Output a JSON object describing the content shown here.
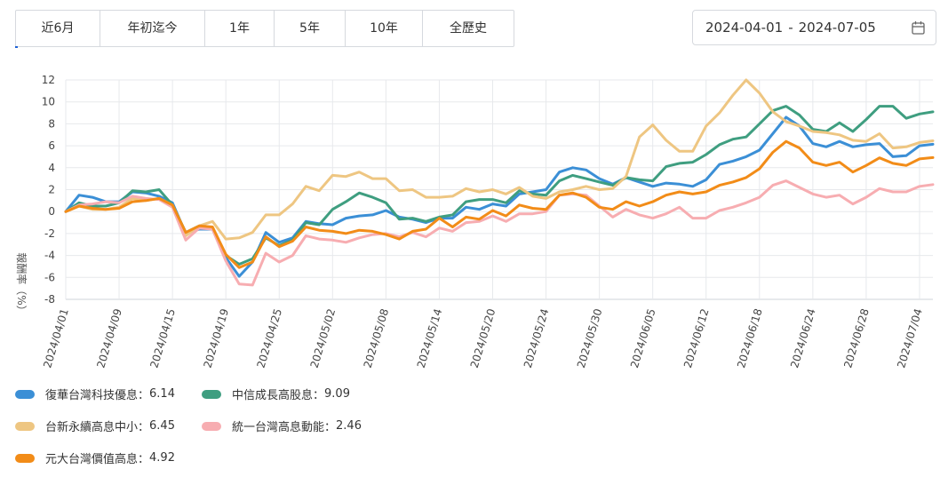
{
  "range_tabs": [
    "近6月",
    "年初迄今",
    "1年",
    "5年",
    "10年",
    "全歷史"
  ],
  "date_range": {
    "start": "2024-04-01",
    "separator": "-",
    "end": "2024-07-05",
    "icon": "calendar-icon"
  },
  "chart_data": {
    "type": "line",
    "ylabel": "報酬率（%）",
    "ylim": [
      -8,
      12
    ],
    "yticks": [
      -8,
      -6,
      -4,
      -2,
      0,
      2,
      4,
      6,
      8,
      10,
      12
    ],
    "grid": true,
    "legend_position": "bottom-left",
    "x": [
      "2024/04/01",
      "2024/04/02",
      "2024/04/03",
      "2024/04/08",
      "2024/04/09",
      "2024/04/10",
      "2024/04/11",
      "2024/04/12",
      "2024/04/15",
      "2024/04/16",
      "2024/04/17",
      "2024/04/18",
      "2024/04/19",
      "2024/04/22",
      "2024/04/23",
      "2024/04/24",
      "2024/04/25",
      "2024/04/26",
      "2024/04/29",
      "2024/04/30",
      "2024/05/02",
      "2024/05/03",
      "2024/05/06",
      "2024/05/07",
      "2024/05/08",
      "2024/05/09",
      "2024/05/10",
      "2024/05/13",
      "2024/05/14",
      "2024/05/15",
      "2024/05/16",
      "2024/05/17",
      "2024/05/20",
      "2024/05/21",
      "2024/05/22",
      "2024/05/23",
      "2024/05/24",
      "2024/05/27",
      "2024/05/28",
      "2024/05/29",
      "2024/05/30",
      "2024/05/31",
      "2024/06/03",
      "2024/06/04",
      "2024/06/05",
      "2024/06/06",
      "2024/06/07",
      "2024/06/11",
      "2024/06/12",
      "2024/06/13",
      "2024/06/14",
      "2024/06/17",
      "2024/06/18",
      "2024/06/19",
      "2024/06/20",
      "2024/06/21",
      "2024/06/24",
      "2024/06/25",
      "2024/06/26",
      "2024/06/27",
      "2024/06/28",
      "2024/07/01",
      "2024/07/02",
      "2024/07/03",
      "2024/07/04",
      "2024/07/05"
    ],
    "xticks": [
      "2024/04/01",
      "2024/04/09",
      "2024/04/15",
      "2024/04/19",
      "2024/04/25",
      "2024/05/02",
      "2024/05/08",
      "2024/05/14",
      "2024/05/20",
      "2024/05/24",
      "2024/05/30",
      "2024/06/05",
      "2024/06/12",
      "2024/06/18",
      "2024/06/24",
      "2024/06/28",
      "2024/07/04"
    ],
    "series": [
      {
        "name": "復華台灣科技優息",
        "final": "6.14",
        "color": "#3b8fd6",
        "values": [
          0,
          1.5,
          1.3,
          0.9,
          0.9,
          1.8,
          1.7,
          1.4,
          0.8,
          -2.0,
          -1.6,
          -1.6,
          -4.2,
          -5.9,
          -4.6,
          -1.9,
          -2.8,
          -2.4,
          -0.9,
          -1.1,
          -1.2,
          -0.6,
          -0.4,
          -0.3,
          0.1,
          -0.5,
          -0.7,
          -1.0,
          -0.6,
          -0.6,
          0.4,
          0.2,
          0.7,
          0.5,
          1.6,
          1.8,
          2.0,
          3.6,
          4.0,
          3.8,
          3.0,
          2.5,
          3.1,
          2.7,
          2.3,
          2.6,
          2.5,
          2.3,
          2.9,
          4.3,
          4.6,
          5.0,
          5.6,
          7.1,
          8.6,
          7.8,
          6.2,
          5.9,
          6.4,
          5.9,
          6.1,
          6.2,
          5.0,
          5.1,
          6.0,
          6.14
        ]
      },
      {
        "name": "中信成長高股息",
        "final": "9.09",
        "color": "#3f9e80",
        "values": [
          0,
          0.8,
          0.5,
          0.5,
          0.8,
          1.9,
          1.8,
          2.0,
          0.6,
          -1.9,
          -1.3,
          -1.5,
          -4.0,
          -4.8,
          -4.3,
          -2.4,
          -3.1,
          -2.6,
          -1.0,
          -1.2,
          0.2,
          0.9,
          1.7,
          1.3,
          0.8,
          -0.7,
          -0.6,
          -0.9,
          -0.5,
          -0.3,
          0.9,
          1.1,
          1.1,
          0.8,
          1.9,
          1.6,
          1.5,
          2.8,
          3.3,
          3.0,
          2.7,
          2.4,
          3.1,
          2.9,
          2.8,
          4.1,
          4.4,
          4.5,
          5.2,
          6.1,
          6.6,
          6.8,
          8.0,
          9.2,
          9.6,
          8.8,
          7.5,
          7.3,
          8.1,
          7.3,
          8.4,
          9.6,
          9.6,
          8.5,
          8.9,
          9.09
        ]
      },
      {
        "name": "台新永續高息中小",
        "final": "6.45",
        "color": "#eec682",
        "values": [
          0,
          0.5,
          0.2,
          0.2,
          0.4,
          1.2,
          1.0,
          1.2,
          0.6,
          -2.2,
          -1.3,
          -0.9,
          -2.5,
          -2.4,
          -1.9,
          -0.3,
          -0.3,
          0.7,
          2.3,
          1.9,
          3.3,
          3.2,
          3.6,
          3.0,
          3.0,
          1.9,
          2.0,
          1.3,
          1.3,
          1.4,
          2.1,
          1.8,
          2.0,
          1.6,
          2.2,
          1.4,
          1.2,
          1.8,
          2.0,
          2.3,
          2.0,
          2.1,
          3.2,
          6.8,
          7.9,
          6.5,
          5.5,
          5.5,
          7.8,
          9.0,
          10.6,
          12.0,
          10.8,
          9.1,
          8.2,
          7.8,
          7.3,
          7.2,
          7.0,
          6.5,
          6.4,
          7.1,
          5.8,
          5.9,
          6.3,
          6.45
        ]
      },
      {
        "name": "統一台灣高息動能",
        "final": "2.46",
        "color": "#f7adb1",
        "values": [
          0,
          0.6,
          0.7,
          0.9,
          0.8,
          1.4,
          1.2,
          1.1,
          0.4,
          -2.6,
          -1.5,
          -1.6,
          -4.5,
          -6.6,
          -6.7,
          -3.8,
          -4.6,
          -4.0,
          -2.2,
          -2.5,
          -2.6,
          -2.8,
          -2.4,
          -2.1,
          -2.0,
          -2.3,
          -1.9,
          -2.3,
          -1.5,
          -1.8,
          -1.0,
          -0.9,
          -0.4,
          -0.9,
          -0.2,
          -0.2,
          0,
          1.5,
          1.6,
          1.5,
          0.5,
          -0.5,
          0.2,
          -0.3,
          -0.6,
          -0.2,
          0.4,
          -0.6,
          -0.6,
          0.1,
          0.4,
          0.8,
          1.3,
          2.4,
          2.8,
          2.2,
          1.6,
          1.3,
          1.5,
          0.7,
          1.3,
          2.1,
          1.8,
          1.8,
          2.3,
          2.46
        ]
      },
      {
        "name": "元大台灣價值高息",
        "final": "4.92",
        "color": "#f28c18",
        "values": [
          0,
          0.5,
          0.3,
          0.2,
          0.3,
          0.9,
          1.0,
          1.2,
          0.6,
          -1.9,
          -1.3,
          -1.4,
          -3.9,
          -5.1,
          -4.6,
          -2.3,
          -3.2,
          -2.7,
          -1.4,
          -1.7,
          -1.8,
          -2.0,
          -1.7,
          -1.8,
          -2.1,
          -2.5,
          -1.8,
          -1.6,
          -0.6,
          -1.4,
          -0.5,
          -0.7,
          0.1,
          -0.4,
          0.6,
          0.3,
          0.2,
          1.5,
          1.7,
          1.3,
          0.4,
          0.2,
          0.9,
          0.5,
          0.9,
          1.5,
          1.8,
          1.6,
          1.8,
          2.4,
          2.7,
          3.1,
          3.9,
          5.4,
          6.4,
          5.8,
          4.5,
          4.2,
          4.5,
          3.6,
          4.2,
          4.9,
          4.4,
          4.2,
          4.8,
          4.92
        ]
      }
    ]
  }
}
